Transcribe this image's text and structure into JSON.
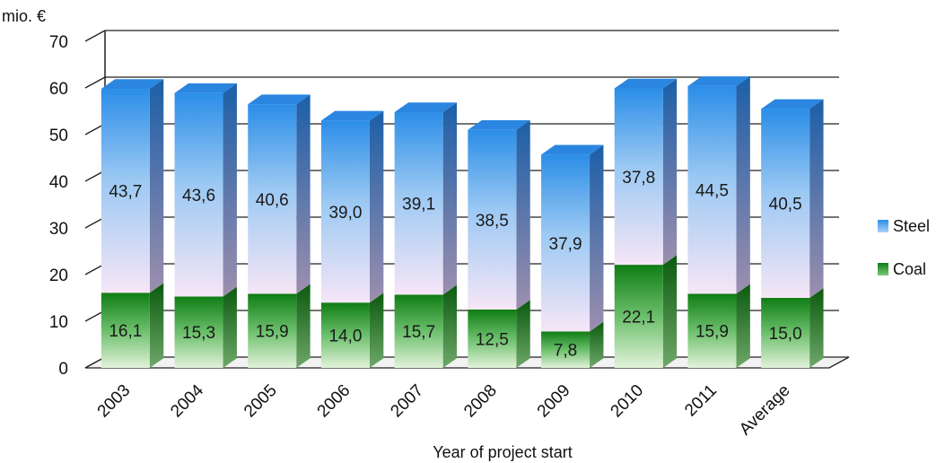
{
  "chart_data": {
    "type": "bar",
    "stacked": true,
    "categories": [
      "2003",
      "2004",
      "2005",
      "2006",
      "2007",
      "2008",
      "2009",
      "2010",
      "2011",
      "Average"
    ],
    "series": [
      {
        "name": "Coal",
        "values": [
          16.1,
          15.3,
          15.9,
          14.0,
          15.7,
          12.5,
          7.8,
          22.1,
          15.9,
          15.0
        ],
        "labels": [
          "16,1",
          "15,3",
          "15,9",
          "14,0",
          "15,7",
          "12,5",
          "7,8",
          "22,1",
          "15,9",
          "15,0"
        ],
        "color": "#1f8c1f"
      },
      {
        "name": "Steel",
        "values": [
          43.7,
          43.6,
          40.6,
          39.0,
          39.1,
          38.5,
          37.9,
          37.8,
          44.5,
          40.5
        ],
        "labels": [
          "43,7",
          "43,6",
          "40,6",
          "39,0",
          "39,1",
          "38,5",
          "37,9",
          "37,8",
          "44,5",
          "40,5"
        ],
        "color": "#3399ee"
      }
    ],
    "y_unit": "mio. €",
    "xlabel": "Year of project start",
    "ylim": [
      0,
      70
    ],
    "yticks": [
      "0",
      "10",
      "20",
      "30",
      "40",
      "50",
      "60",
      "70"
    ],
    "grid": true,
    "legend": "right",
    "style": "3d-column"
  }
}
